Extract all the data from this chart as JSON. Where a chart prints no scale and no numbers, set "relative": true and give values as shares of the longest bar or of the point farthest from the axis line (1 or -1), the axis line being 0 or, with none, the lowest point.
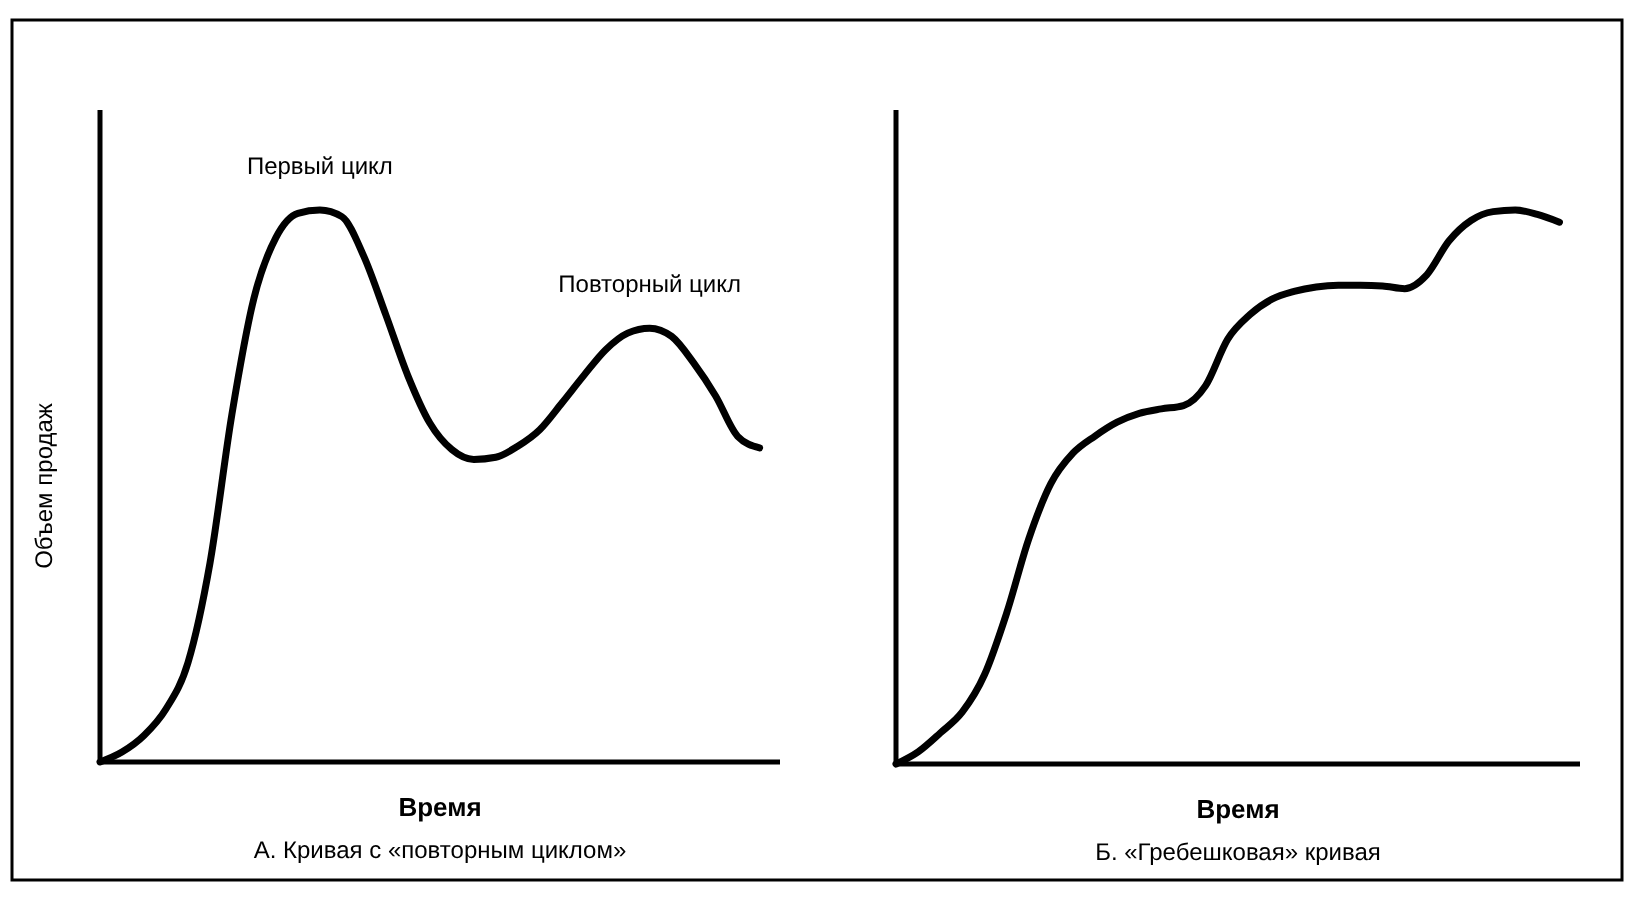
{
  "chart_data": [
    {
      "type": "line",
      "relative": true,
      "title": "А. Кривая с «повторным циклом»",
      "xlabel": "Время",
      "ylabel": "Объем продаж",
      "categories": [
        null,
        null,
        null,
        null,
        null,
        null,
        null,
        null,
        null,
        null,
        null,
        null,
        null,
        null,
        null,
        null,
        null,
        null,
        null,
        null,
        null,
        null,
        null,
        null,
        null,
        null,
        null,
        null,
        null,
        null,
        null
      ],
      "series": [
        {
          "color": "#000000",
          "values": [
            0,
            0.018,
            0.048,
            0.096,
            0.18,
            0.36,
            0.63,
            0.84,
            0.95,
            0.994,
            1,
            0.988,
            0.916,
            0.81,
            0.7,
            0.614,
            0.566,
            0.548,
            0.552,
            0.572,
            0.602,
            0.65,
            0.7,
            0.747,
            0.777,
            0.786,
            0.771,
            0.723,
            0.663,
            0.59,
            0.569
          ]
        }
      ],
      "annotations": [
        {
          "text": "Первый цикл",
          "y": 1
        },
        {
          "text": "Повторный цикл",
          "y": 0.786
        }
      ]
    },
    {
      "type": "line",
      "relative": true,
      "title": "Б. «Гребешковая» кривая",
      "xlabel": "Время",
      "categories": [
        null,
        null,
        null,
        null,
        null,
        null,
        null,
        null,
        null,
        null,
        null,
        null,
        null,
        null,
        null,
        null,
        null,
        null,
        null,
        null,
        null,
        null,
        null,
        null,
        null,
        null,
        null,
        null,
        null,
        null,
        null
      ],
      "series": [
        {
          "color": "#000000",
          "values": [
            0,
            0.022,
            0.056,
            0.094,
            0.161,
            0.272,
            0.406,
            0.506,
            0.561,
            0.592,
            0.617,
            0.633,
            0.641,
            0.647,
            0.683,
            0.767,
            0.811,
            0.839,
            0.853,
            0.861,
            0.864,
            0.864,
            0.863,
            0.858,
            0.883,
            0.944,
            0.981,
            0.997,
            1,
            0.992,
            0.978
          ]
        }
      ]
    }
  ]
}
